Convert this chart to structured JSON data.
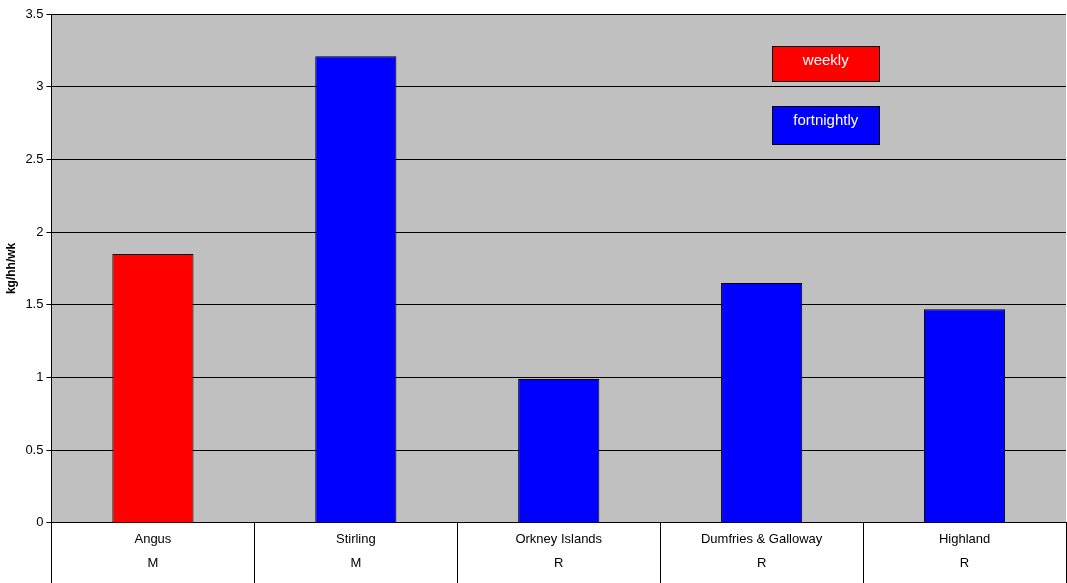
{
  "chart_data": {
    "type": "bar",
    "ylabel": "kg/hh/wk",
    "categories": [
      "Angus\nM",
      "Stirling\nM",
      "Orkney Islands\nR",
      "Dumfries & Galloway\nR",
      "Highland\nR"
    ],
    "series": [
      {
        "name": "weekly",
        "color": "#ff0000",
        "values": [
          1.85,
          null,
          null,
          null,
          null
        ]
      },
      {
        "name": "fortnightly",
        "color": "#0000ff",
        "values": [
          null,
          3.21,
          0.99,
          1.65,
          1.47
        ]
      }
    ],
    "ylim": [
      0,
      3.5
    ],
    "yticks": [
      0,
      0.5,
      1,
      1.5,
      2,
      2.5,
      3,
      3.5
    ],
    "grid": "y",
    "legend": "top right"
  }
}
